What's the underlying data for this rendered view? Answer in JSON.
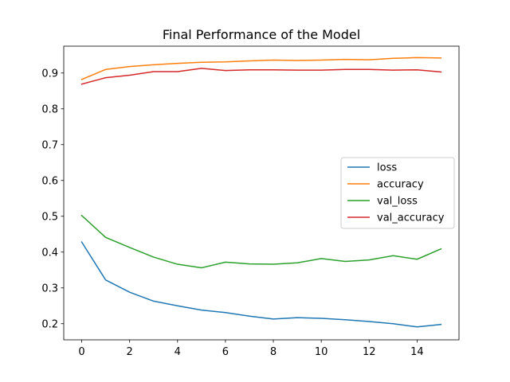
{
  "chart_data": {
    "type": "line",
    "title": "Final Performance of the Model",
    "xlabel": "",
    "ylabel": "",
    "xlim": [
      -0.75,
      15.75
    ],
    "ylim": [
      0.155,
      0.975
    ],
    "x_ticks": [
      0,
      2,
      4,
      6,
      8,
      10,
      12,
      14
    ],
    "y_ticks": [
      0.2,
      0.3,
      0.4,
      0.5,
      0.6,
      0.7,
      0.8,
      0.9
    ],
    "x": [
      0,
      1,
      2,
      3,
      4,
      5,
      6,
      7,
      8,
      9,
      10,
      11,
      12,
      13,
      14,
      15
    ],
    "grid": false,
    "legend_position": "center-right",
    "series": [
      {
        "name": "loss",
        "color": "#1f77b4",
        "values": [
          0.428,
          0.322,
          0.288,
          0.263,
          0.25,
          0.238,
          0.231,
          0.221,
          0.213,
          0.217,
          0.215,
          0.211,
          0.206,
          0.2,
          0.191,
          0.198
        ]
      },
      {
        "name": "accuracy",
        "color": "#ff7f0e",
        "values": [
          0.882,
          0.91,
          0.918,
          0.923,
          0.927,
          0.93,
          0.931,
          0.934,
          0.936,
          0.935,
          0.936,
          0.938,
          0.937,
          0.941,
          0.943,
          0.942
        ]
      },
      {
        "name": "val_loss",
        "color": "#2ca02c",
        "values": [
          0.502,
          0.441,
          0.413,
          0.386,
          0.366,
          0.356,
          0.372,
          0.367,
          0.366,
          0.37,
          0.382,
          0.374,
          0.378,
          0.39,
          0.38,
          0.409
        ]
      },
      {
        "name": "val_accuracy",
        "color": "#d62728",
        "values": [
          0.869,
          0.887,
          0.894,
          0.904,
          0.904,
          0.913,
          0.907,
          0.909,
          0.909,
          0.908,
          0.908,
          0.91,
          0.91,
          0.908,
          0.909,
          0.903
        ]
      }
    ]
  }
}
